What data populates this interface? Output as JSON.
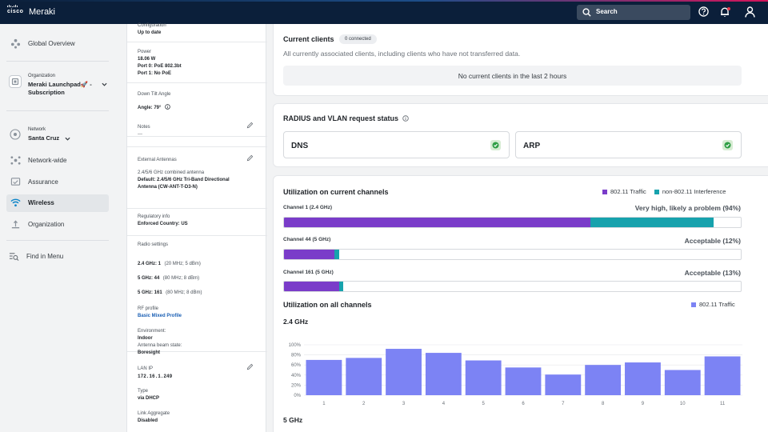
{
  "topbar": {
    "logo_text": "cisco",
    "app_name": "Meraki",
    "search_placeholder": "Search"
  },
  "sidebar": {
    "global_overview": "Global Overview",
    "organization_label": "Organization",
    "organization_name": "Meraki Launchpad🚀 - Subscription",
    "network_label": "Network",
    "network_name": "Santa Cruz",
    "items": [
      {
        "label": "Network-wide",
        "icon": "network-wide-icon"
      },
      {
        "label": "Assurance",
        "icon": "assurance-icon"
      },
      {
        "label": "Wireless",
        "icon": "wifi-icon",
        "active": true
      },
      {
        "label": "Organization",
        "icon": "organization-icon"
      }
    ],
    "find_in_menu": "Find in Menu"
  },
  "details": {
    "configuration_label": "Configuration",
    "configuration_value": "Up to date",
    "power_label": "Power",
    "power_value": "18.06 W",
    "port0": "Port 0: PoE 802.3bt",
    "port1": "Port 1: No PoE",
    "tilt_label": "Down Tilt Angle",
    "tilt_value": "Angle: 79°",
    "notes_label": "Notes",
    "notes_value": "—",
    "antennas_label": "External Antennas",
    "antennas_sub": "2.4/5/6 GHz combined antenna",
    "antennas_line1": "Default: 2.4/5/6 GHz Tri-Band Directional",
    "antennas_line2": "Antenna (CW-ANT-T-D3-N)",
    "regulatory_label": "Regulatory info",
    "regulatory_value": "Enforced Country: US",
    "radio_label": "Radio settings",
    "radio": [
      {
        "band": "2.4 GHz: 1",
        "detail": "(20 MHz; 5 dBm)"
      },
      {
        "band": "5 GHz: 44",
        "detail": "(80 MHz; 8 dBm)"
      },
      {
        "band": "5 GHz: 161",
        "detail": "(80 MHz; 8 dBm)"
      }
    ],
    "rf_label": "RF profile",
    "rf_value": "Basic Mixed Profile",
    "environment_label": "Environment:",
    "environment_value": "Indoor",
    "beam_label": "Antenna beam state:",
    "beam_value": "Boresight",
    "lan_label": "LAN IP",
    "lan_value": "172.16.1.249",
    "type_label": "Type",
    "type_value": "via DHCP",
    "link_label": "Link Aggregate",
    "link_value": "Disabled"
  },
  "clients": {
    "title": "Current clients",
    "badge": "0 connected",
    "description": "All currently associated clients, including clients who have not transferred data.",
    "empty": "No current clients in the last 2 hours"
  },
  "radius": {
    "title": "RADIUS and VLAN request status",
    "dns": "DNS",
    "arp": "ARP",
    "status_color": "#2f9e44"
  },
  "utilization": {
    "title": "Utilization on current channels",
    "legend_traffic": "802.11 Traffic",
    "legend_interference": "non-802.11 Interference",
    "traffic_color": "#7a3cc9",
    "interference_color": "#17a2ad",
    "channels": [
      {
        "label": "Channel 1 (2.4 GHz)",
        "status": "Very high, likely a problem (94%)",
        "traffic": 67,
        "interference": 27
      },
      {
        "label": "Channel 44 (5 GHz)",
        "status": "Acceptable (12%)",
        "traffic": 11,
        "interference": 1
      },
      {
        "label": "Channel 161 (5 GHz)",
        "status": "Acceptable (13%)",
        "traffic": 12,
        "interference": 1
      }
    ]
  },
  "all_channels": {
    "title": "Utilization on all channels",
    "legend": "802.11 Traffic",
    "band_24": "2.4 GHz",
    "band_5": "5 GHz",
    "bar_color": "#7c83f4"
  },
  "chart_data": {
    "type": "bar",
    "title": "2.4 GHz",
    "categories": [
      "1",
      "2",
      "3",
      "4",
      "5",
      "6",
      "7",
      "8",
      "9",
      "10",
      "11"
    ],
    "values": [
      70,
      74,
      92,
      84,
      69,
      55,
      41,
      60,
      65,
      50,
      77
    ],
    "ylim": [
      0,
      100
    ],
    "yticks": [
      "100%",
      "80%",
      "60%",
      "40%",
      "20%",
      "0%"
    ],
    "xlabel": "",
    "ylabel": ""
  }
}
